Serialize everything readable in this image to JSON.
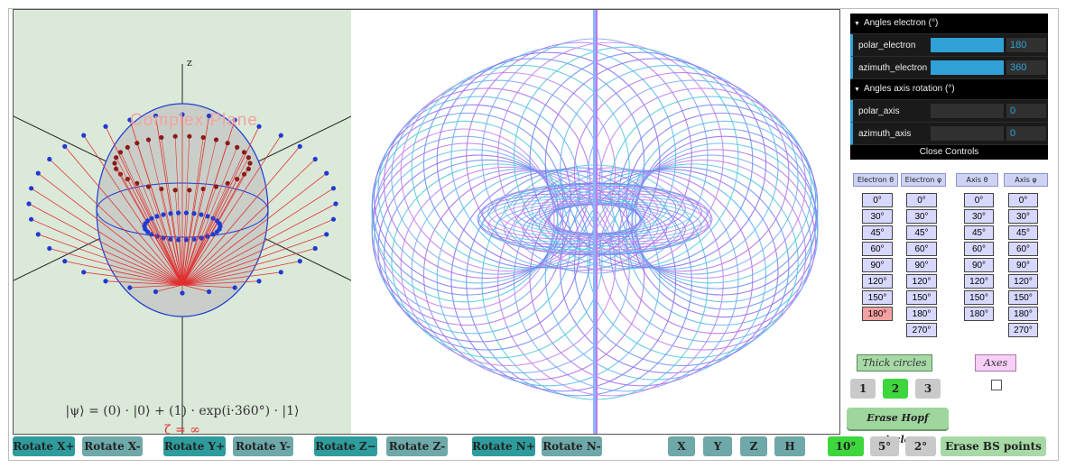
{
  "left_panel": {
    "title": "Complex Plane",
    "axis_label": "z",
    "equation": "|ψ⟩  =  (0) · |0⟩  +  (1) · exp(i·360°) · |1⟩",
    "zeta": "ζ = ∞"
  },
  "gui": {
    "folder_electron": "Angles electron (°)",
    "polar_electron_label": "polar_electron",
    "polar_electron_value": "180",
    "polar_electron_fraction": 1.0,
    "azimuth_electron_label": "azimuth_electron",
    "azimuth_electron_value": "360",
    "azimuth_electron_fraction": 1.0,
    "folder_axis": "Angles axis rotation (°)",
    "polar_axis_label": "polar_axis",
    "polar_axis_value": "0",
    "azimuth_axis_label": "azimuth_axis",
    "azimuth_axis_value": "0",
    "close_label": "Close Controls"
  },
  "angle_headers": [
    "Electron θ",
    "Electron φ",
    "Axis θ",
    "Axis φ"
  ],
  "angle_columns": [
    [
      "0°",
      "30°",
      "45°",
      "60°",
      "90°",
      "120°",
      "150°",
      "180°"
    ],
    [
      "0°",
      "30°",
      "45°",
      "60°",
      "90°",
      "120°",
      "150°",
      "180°",
      "270°"
    ],
    [
      "0°",
      "30°",
      "45°",
      "60°",
      "90°",
      "120°",
      "150°",
      "180°"
    ],
    [
      "0°",
      "30°",
      "45°",
      "60°",
      "90°",
      "120°",
      "150°",
      "180°",
      "270°"
    ]
  ],
  "toggles": {
    "thick_circles": "Thick circles",
    "axes": "Axes",
    "erase_hopf": "Erase Hopf circles"
  },
  "thickness": [
    "1",
    "2",
    "3"
  ],
  "bottom": {
    "rotate": [
      "Rotate X+",
      "Rotate X-",
      "Rotate Y+",
      "Rotate Y-",
      "Rotate Z−",
      "Rotate Z-",
      "Rotate N+",
      "Rotate N-"
    ],
    "views": [
      "X",
      "Y",
      "Z",
      "H"
    ],
    "steps": [
      "10°",
      "5°",
      "2°"
    ],
    "erase_bs": "Erase BS points"
  },
  "colors": {
    "teal": "#2e9c9c",
    "gray_btn": "#6fa8a8",
    "green": "#3dd63d",
    "gui_blue": "#2fa1d6"
  }
}
